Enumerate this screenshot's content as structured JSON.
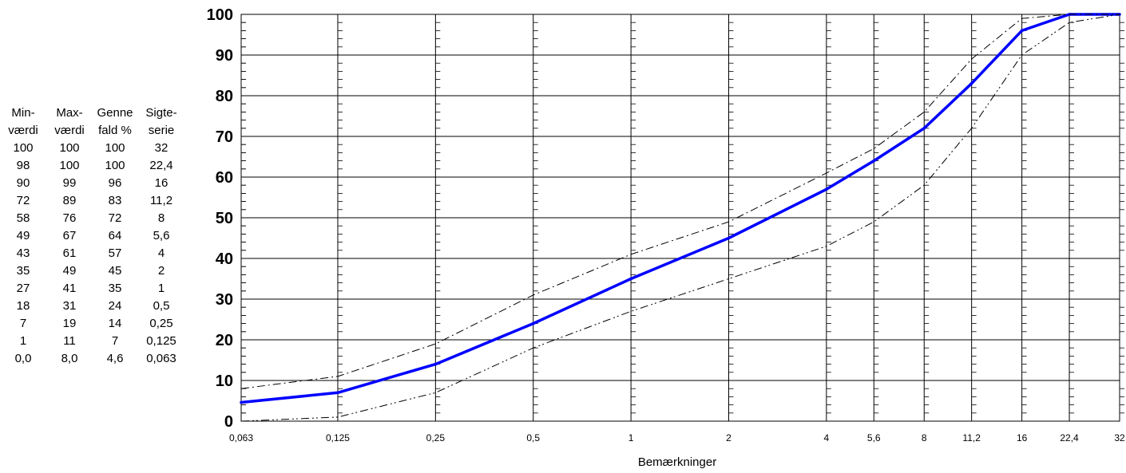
{
  "table": {
    "headers": [
      [
        "Min-",
        "Max-",
        "Genne",
        "Sigte-"
      ],
      [
        "værdi",
        "værdi",
        "fald %",
        "serie"
      ]
    ],
    "rows": [
      [
        "100",
        "100",
        "100",
        "32"
      ],
      [
        "98",
        "100",
        "100",
        "22,4"
      ],
      [
        "90",
        "99",
        "96",
        "16"
      ],
      [
        "72",
        "89",
        "83",
        "11,2"
      ],
      [
        "58",
        "76",
        "72",
        "8"
      ],
      [
        "49",
        "67",
        "64",
        "5,6"
      ],
      [
        "43",
        "61",
        "57",
        "4"
      ],
      [
        "35",
        "49",
        "45",
        "2"
      ],
      [
        "27",
        "41",
        "35",
        "1"
      ],
      [
        "18",
        "31",
        "24",
        "0,5"
      ],
      [
        "7",
        "19",
        "14",
        "0,25"
      ],
      [
        "1",
        "11",
        "7",
        "0,125"
      ],
      [
        "0,0",
        "8,0",
        "4,6",
        "0,063"
      ]
    ]
  },
  "chart_data": {
    "type": "line",
    "xlabel": "Bemærkninger",
    "ylabel": "",
    "x_scale": "log",
    "x": [
      0.063,
      0.125,
      0.25,
      0.5,
      1,
      2,
      4,
      5.6,
      8,
      11.2,
      16,
      22.4,
      32
    ],
    "x_tick_labels": [
      "0,063",
      "0,125",
      "0,25",
      "0,5",
      "1",
      "2",
      "4",
      "5,6",
      "8",
      "11,2",
      "16",
      "22,4",
      "32"
    ],
    "ylim": [
      0,
      100
    ],
    "y_ticks": [
      0,
      10,
      20,
      30,
      40,
      50,
      60,
      70,
      80,
      90,
      100
    ],
    "grid": true,
    "series": [
      {
        "role": "passing",
        "style": "solid",
        "color": "#0000ff",
        "values": [
          4.6,
          7,
          14,
          24,
          35,
          45,
          57,
          64,
          72,
          83,
          96,
          100,
          100
        ]
      },
      {
        "role": "max",
        "style": "dash-dot",
        "color": "#000000",
        "values": [
          8.0,
          11,
          19,
          31,
          41,
          49,
          61,
          67,
          76,
          89,
          99,
          100,
          100
        ]
      },
      {
        "role": "min",
        "style": "dash-dot-dot",
        "color": "#000000",
        "values": [
          0.0,
          1,
          7,
          18,
          27,
          35,
          43,
          49,
          58,
          72,
          90,
          98,
          100
        ]
      }
    ]
  }
}
